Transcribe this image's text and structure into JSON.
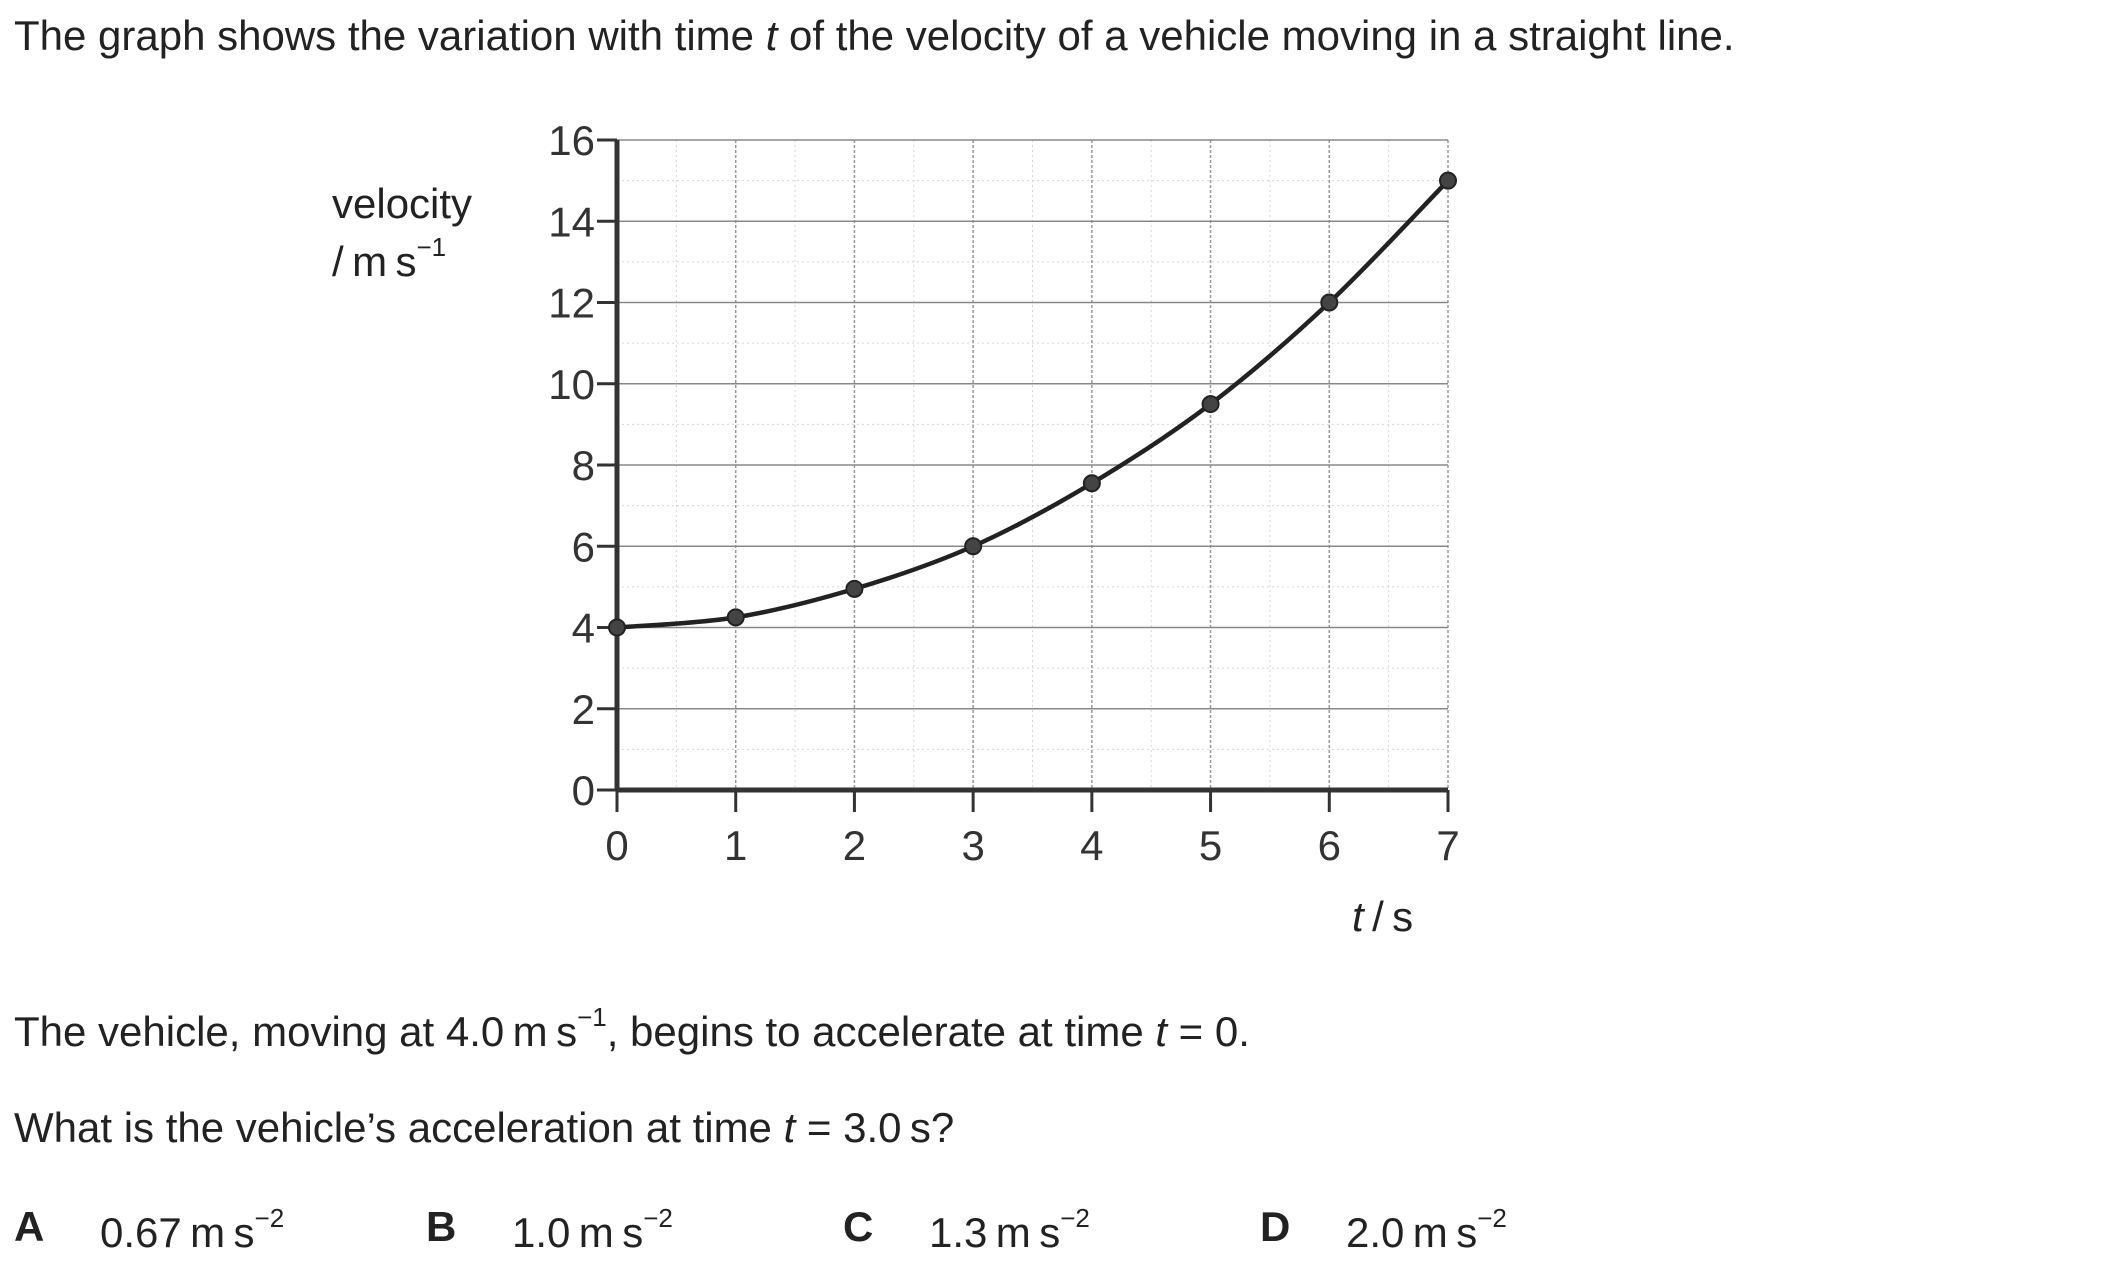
{
  "question": {
    "intro_before": "The graph shows the variation with time ",
    "intro_var": "t",
    "intro_after": " of the velocity of a vehicle moving in a straight line.",
    "para1_a": "The vehicle, moving at 4.0 m s",
    "para1_sup": "−1",
    "para1_b": ", begins to accelerate at time ",
    "para1_var": "t",
    "para1_c": " = 0.",
    "para2_a": "What is the vehicle’s acceleration at time ",
    "para2_var": "t",
    "para2_b": " = 3.0 s?",
    "options": [
      {
        "letter": "A",
        "value": "0.67 m s",
        "sup": "−2"
      },
      {
        "letter": "B",
        "value": "1.0 m s",
        "sup": "−2"
      },
      {
        "letter": "C",
        "value": "1.3 m s",
        "sup": "−2"
      },
      {
        "letter": "D",
        "value": "2.0 m s",
        "sup": "−2"
      }
    ]
  },
  "chart_data": {
    "type": "line",
    "ylabel_line1": "velocity",
    "ylabel_line2": "/ m s",
    "ylabel_sup": "−1",
    "xlabel_var": "t",
    "xlabel_unit": " / s",
    "xlim": [
      0,
      7
    ],
    "ylim": [
      0,
      16
    ],
    "x_ticks": [
      0,
      1,
      2,
      3,
      4,
      5,
      6,
      7
    ],
    "y_ticks": [
      0,
      2,
      4,
      6,
      8,
      10,
      12,
      14,
      16
    ],
    "grid": true,
    "series": [
      {
        "x": [
          0,
          1,
          2,
          3,
          4,
          5,
          6,
          7
        ],
        "y": [
          4.0,
          4.25,
          4.95,
          6.0,
          7.55,
          9.5,
          12.0,
          15.0
        ],
        "markers": true,
        "color": "#222222"
      }
    ]
  }
}
